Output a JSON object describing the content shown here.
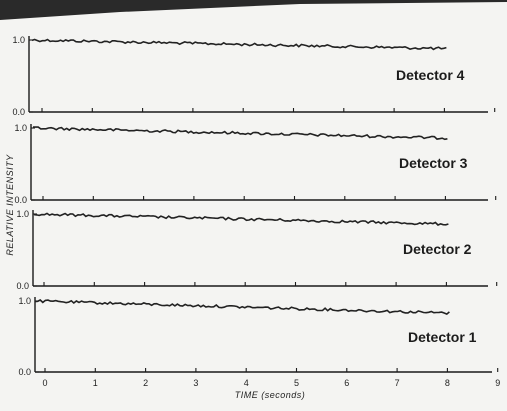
{
  "chart_data": {
    "type": "line",
    "xlabel": "TIME (seconds)",
    "ylabel": "RELATIVE INTENSITY",
    "xlim": [
      0,
      9
    ],
    "ylim": [
      0,
      1.0
    ],
    "x_ticks": [
      0,
      1,
      2,
      3,
      4,
      5,
      6,
      7,
      8,
      9
    ],
    "y_tick_labels": [
      "0.0",
      "1.0"
    ],
    "grid": false,
    "panels": [
      {
        "name": "Detector 4",
        "x": [
          0,
          8
        ],
        "y": [
          1.0,
          0.88
        ]
      },
      {
        "name": "Detector 3",
        "x": [
          0,
          8
        ],
        "y": [
          1.0,
          0.86
        ]
      },
      {
        "name": "Detector 2",
        "x": [
          0,
          8
        ],
        "y": [
          1.0,
          0.86
        ]
      },
      {
        "name": "Detector 1",
        "x": [
          0,
          8
        ],
        "y": [
          1.0,
          0.83
        ]
      }
    ]
  }
}
